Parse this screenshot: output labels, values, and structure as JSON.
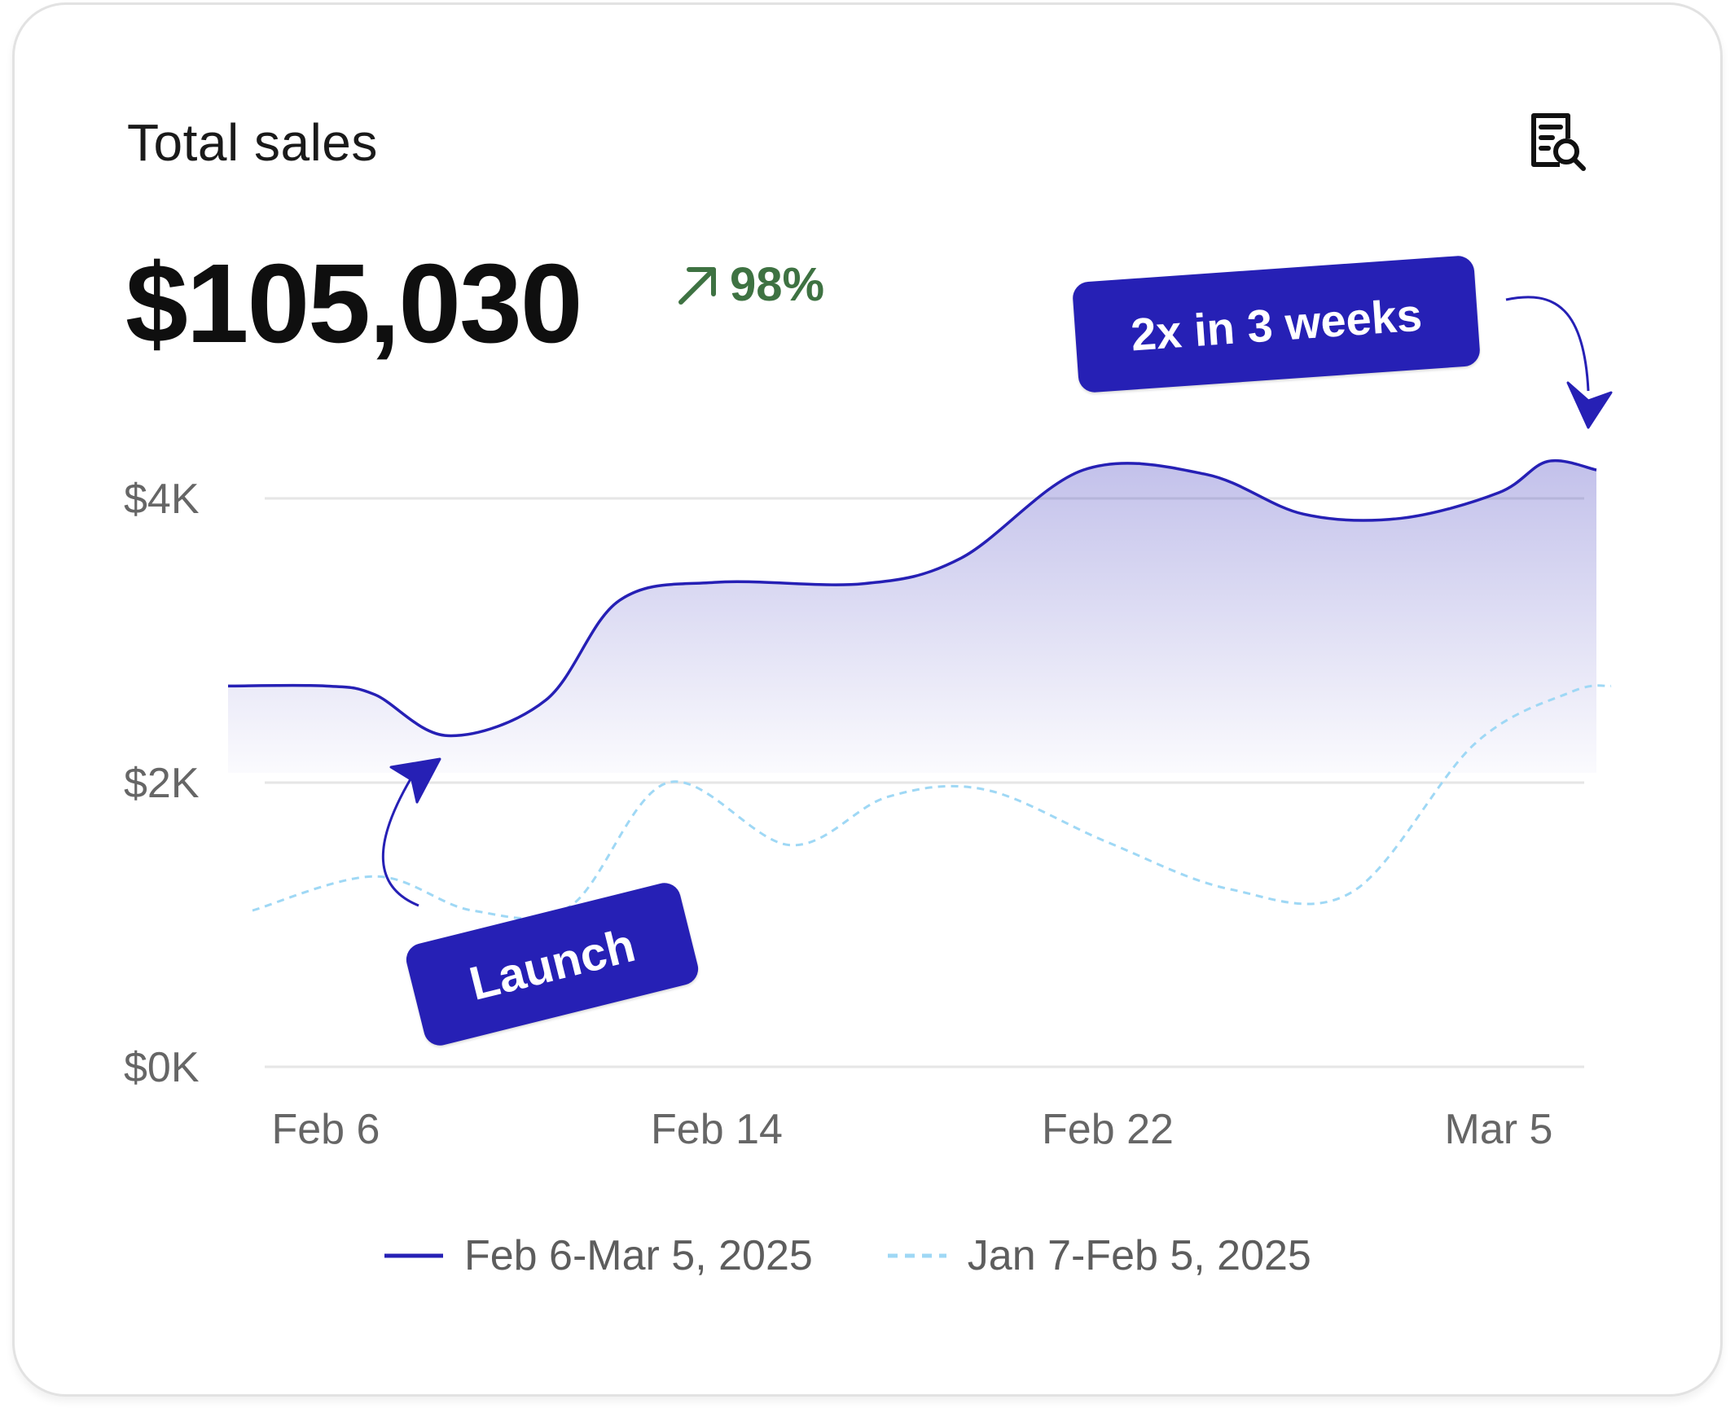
{
  "card": {
    "title": "Total sales",
    "total": "$105,030",
    "change": "98%",
    "report_icon": "report-search-icon",
    "change_icon": "arrow-up-right-icon"
  },
  "annotations": {
    "peak": "2x in 3 weeks",
    "launch": "Launch"
  },
  "colors": {
    "current": "#2620b5",
    "previous": "#9fd8f5",
    "positive": "#3e7242",
    "grid": "#e6e6e6"
  },
  "chart_data": {
    "type": "area",
    "y_ticks": [
      "$4K",
      "$2K",
      "$0K"
    ],
    "y_tick_values": [
      4000,
      2000,
      0
    ],
    "ylim": [
      0,
      4000
    ],
    "x_tick_labels": [
      "Feb 6",
      "Feb 14",
      "Feb 22",
      "Mar 5"
    ],
    "x_tick_positions": [
      2,
      10,
      18,
      26
    ],
    "xlim": [
      0,
      28
    ],
    "grid": true,
    "legend_position": "bottom",
    "series": [
      {
        "name": "Feb 6-Mar 5, 2025",
        "style": "solid-area",
        "x": [
          0,
          2,
          3,
          4.5,
          6.5,
          8,
          10,
          13,
          15,
          17.5,
          20,
          22,
          24,
          26,
          27,
          28
        ],
        "values": [
          2680,
          2680,
          2620,
          2330,
          2580,
          3280,
          3410,
          3400,
          3580,
          4200,
          4170,
          3890,
          3860,
          4040,
          4260,
          4200
        ]
      },
      {
        "name": "Jan 7-Feb 5, 2025",
        "style": "dashed",
        "x": [
          0.5,
          3,
          5,
          7,
          9,
          11.5,
          13.5,
          15.5,
          18,
          20.5,
          23,
          25.5,
          27.5,
          28.3
        ],
        "values": [
          1100,
          1340,
          1100,
          1130,
          2000,
          1560,
          1900,
          1950,
          1580,
          1250,
          1230,
          2270,
          2640,
          2680
        ]
      }
    ]
  }
}
